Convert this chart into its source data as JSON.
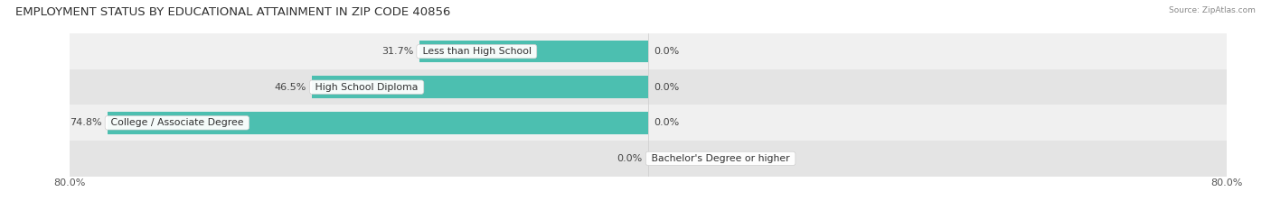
{
  "title": "EMPLOYMENT STATUS BY EDUCATIONAL ATTAINMENT IN ZIP CODE 40856",
  "source": "Source: ZipAtlas.com",
  "categories": [
    "Less than High School",
    "High School Diploma",
    "College / Associate Degree",
    "Bachelor's Degree or higher"
  ],
  "in_labor_force": [
    31.7,
    46.5,
    74.8,
    0.0
  ],
  "unemployed": [
    0.0,
    0.0,
    0.0,
    0.0
  ],
  "x_min": -80.0,
  "x_max": 80.0,
  "color_labor": "#4CBFB0",
  "color_labor_zero": "#A8D8D4",
  "color_unemployed": "#F48FB1",
  "row_bg_even": "#F0F0F0",
  "row_bg_odd": "#E4E4E4",
  "title_fontsize": 9.5,
  "label_fontsize": 8.0,
  "cat_fontsize": 7.8,
  "bar_height": 0.62,
  "figsize": [
    14.06,
    2.33
  ],
  "dpi": 100
}
